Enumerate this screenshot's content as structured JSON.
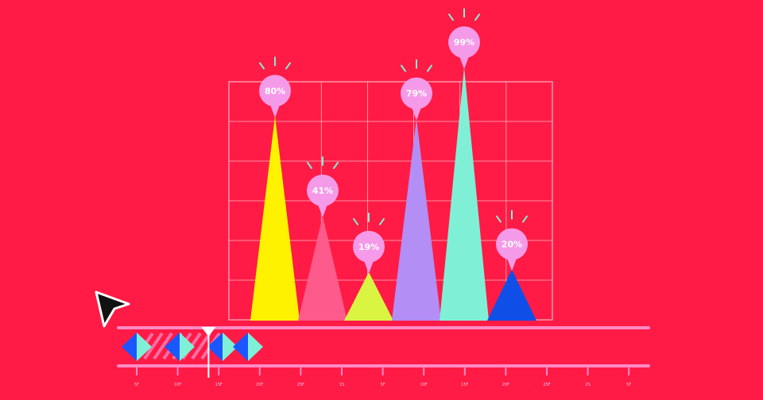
{
  "colors": {
    "background": "#ff1b45",
    "grid": "#ffb3c3",
    "bubble": "#f59ae8",
    "spark": "#7ff0d6",
    "track": "#ff8ac7",
    "keyframe_light": "#7ff0d6",
    "keyframe_dark": "#1a57ff",
    "cursor_fill": "#111111",
    "cursor_stroke": "#ffffff"
  },
  "chart_data": {
    "type": "bar",
    "shape": "triangle",
    "ylim": [
      0,
      100
    ],
    "grid": true,
    "series": [
      {
        "label": "80%",
        "value": 80,
        "color": "#fff200"
      },
      {
        "label": "41%",
        "value": 41,
        "color": "#ff5a8c"
      },
      {
        "label": "19%",
        "value": 19,
        "color": "#d9f542"
      },
      {
        "label": "79%",
        "value": 79,
        "color": "#b28ef5"
      },
      {
        "label": "99%",
        "value": 99,
        "color": "#7ff0d6"
      },
      {
        "label": "20%",
        "value": 20,
        "color": "#0f4fe8"
      }
    ]
  },
  "timeline": {
    "ticks": [
      "5F",
      "10F",
      "15F",
      "20F",
      "25F",
      "1S",
      "5F",
      "10F",
      "15F",
      "20F",
      "25F",
      "2S",
      "5F"
    ],
    "keyframes": 4,
    "playhead_position": 0.17
  },
  "icons": {
    "cursor": "arrow-cursor-icon",
    "playhead": "playhead-icon",
    "keyframe": "keyframe-diamond-icon"
  }
}
